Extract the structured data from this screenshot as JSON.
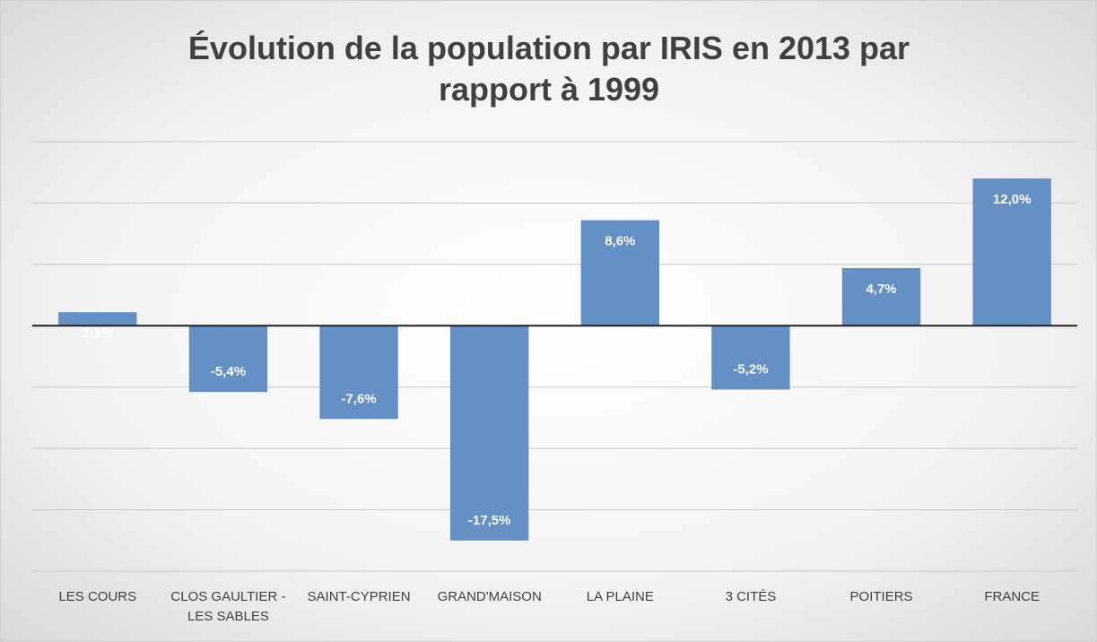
{
  "chart_data": {
    "type": "bar",
    "title": "Évolution de la population par IRIS en 2013 par rapport à 1999",
    "categories": [
      "LES COURS",
      "CLOS GAULTIER - LES SABLES",
      "SAINT-CYPRIEN",
      "GRAND'MAISON",
      "LA PLAINE",
      "3 CITÉS",
      "POITIERS",
      "FRANCE"
    ],
    "values": [
      1.1,
      -5.4,
      -7.6,
      -17.5,
      8.6,
      -5.2,
      4.7,
      12.0
    ],
    "value_labels": [
      "1,1%",
      "-5,4%",
      "-7,6%",
      "-17,5%",
      "8,6%",
      "-5,2%",
      "4,7%",
      "12,0%"
    ],
    "color": "#6490c6",
    "ylim": [
      -20,
      15
    ],
    "yticks": [
      -20,
      -15,
      -10,
      -5,
      0,
      5,
      10,
      15
    ],
    "grid": true
  }
}
